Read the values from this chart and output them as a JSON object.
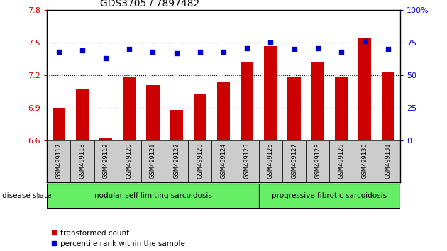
{
  "title": "GDS3705 / 7897482",
  "samples": [
    "GSM499117",
    "GSM499118",
    "GSM499119",
    "GSM499120",
    "GSM499121",
    "GSM499122",
    "GSM499123",
    "GSM499124",
    "GSM499125",
    "GSM499126",
    "GSM499127",
    "GSM499128",
    "GSM499129",
    "GSM499130",
    "GSM499131"
  ],
  "transformed_count": [
    6.9,
    7.08,
    6.63,
    7.19,
    7.11,
    6.88,
    7.03,
    7.14,
    7.32,
    7.47,
    7.19,
    7.32,
    7.19,
    7.55,
    7.23
  ],
  "percentile_rank": [
    68,
    69,
    63,
    70,
    68,
    67,
    68,
    68,
    71,
    75,
    70,
    71,
    68,
    76,
    70
  ],
  "ylim_left": [
    6.6,
    7.8
  ],
  "ylim_right": [
    0,
    100
  ],
  "yticks_left": [
    6.6,
    6.9,
    7.2,
    7.5,
    7.8
  ],
  "yticks_right": [
    0,
    25,
    50,
    75,
    100
  ],
  "grid_values": [
    6.9,
    7.2,
    7.5
  ],
  "left_color": "#cc0000",
  "right_color": "#0000cc",
  "bar_color": "#cc0000",
  "marker_color": "#0000cc",
  "group1_count": 9,
  "group1_label": "nodular self-limiting sarcoidosis",
  "group2_label": "progressive fibrotic sarcoidosis",
  "group_bg_color": "#66ee66",
  "sample_label_bg": "#cccccc",
  "legend_bar_label": "transformed count",
  "legend_marker_label": "percentile rank within the sample",
  "disease_state_label": "disease state",
  "title_fontsize": 10,
  "tick_fontsize": 8,
  "label_fontsize": 6,
  "disease_fontsize": 7.5,
  "legend_fontsize": 7.5
}
